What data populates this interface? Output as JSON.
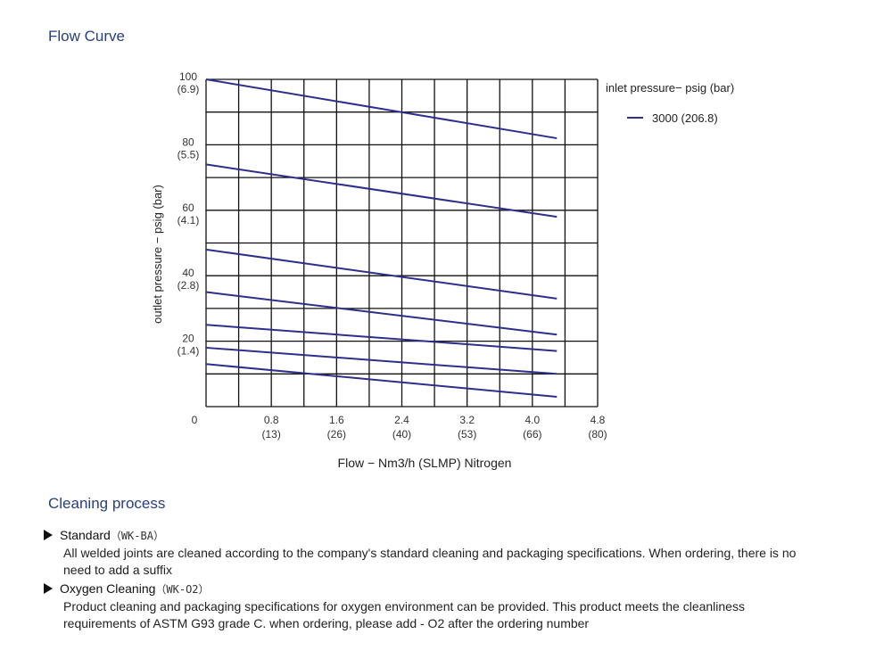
{
  "page": {
    "flow_title": "Flow Curve",
    "cleaning_title": "Cleaning process"
  },
  "colors": {
    "series": "#2e2e8c",
    "grid": "#111111",
    "title": "#2a3f7a"
  },
  "chart_data": {
    "type": "line",
    "xlabel": "Flow − Nm3/h (SLMP) Nitrogen",
    "ylabel": "outlet pressure − psig (bar)",
    "xlim": [
      0,
      4.8
    ],
    "ylim": [
      0,
      100
    ],
    "x_ticks": [
      {
        "value": 0,
        "label": "0",
        "sub": ""
      },
      {
        "value": 0.8,
        "label": "0.8",
        "sub": "(13)"
      },
      {
        "value": 1.6,
        "label": "1.6",
        "sub": "(26)"
      },
      {
        "value": 2.4,
        "label": "2.4",
        "sub": "(40)"
      },
      {
        "value": 3.2,
        "label": "3.2",
        "sub": "(53)"
      },
      {
        "value": 4.0,
        "label": "4.0",
        "sub": "(66)"
      },
      {
        "value": 4.8,
        "label": "4.8",
        "sub": "(80)"
      }
    ],
    "y_ticks": [
      {
        "value": 100,
        "label": "100",
        "sub": "(6.9)"
      },
      {
        "value": 80,
        "label": "80",
        "sub": "(5.5)"
      },
      {
        "value": 60,
        "label": "60",
        "sub": "(4.1)"
      },
      {
        "value": 40,
        "label": "40",
        "sub": "(2.8)"
      },
      {
        "value": 20,
        "label": "20",
        "sub": "(1.4)"
      }
    ],
    "grid": true,
    "legend": {
      "title": "inlet pressure− psig (bar)",
      "placement": "top-right",
      "entries": [
        "3000 (206.8)"
      ]
    },
    "series": [
      {
        "x": [
          0,
          4.3
        ],
        "y": [
          100,
          82
        ]
      },
      {
        "x": [
          0,
          4.3
        ],
        "y": [
          74,
          58
        ]
      },
      {
        "x": [
          0,
          4.3
        ],
        "y": [
          48,
          33
        ]
      },
      {
        "x": [
          0,
          4.3
        ],
        "y": [
          35,
          22
        ]
      },
      {
        "x": [
          0,
          4.3
        ],
        "y": [
          25,
          17
        ]
      },
      {
        "x": [
          0,
          4.3
        ],
        "y": [
          18,
          10
        ]
      },
      {
        "x": [
          0,
          4.3
        ],
        "y": [
          13,
          3
        ]
      }
    ]
  },
  "cleaning": {
    "items": [
      {
        "name": "Standard",
        "code": "（WK-BA）",
        "description": "All welded joints are cleaned according to the company's standard cleaning and packaging specifications. When ordering, there is no need to add a suffix"
      },
      {
        "name": "Oxygen Cleaning",
        "code": "（WK-O2）",
        "description": "Product cleaning and packaging specifications for oxygen environment can be provided. This product meets the cleanliness requirements of ASTM G93 grade C. when ordering, please add - O2 after the ordering number"
      }
    ]
  }
}
